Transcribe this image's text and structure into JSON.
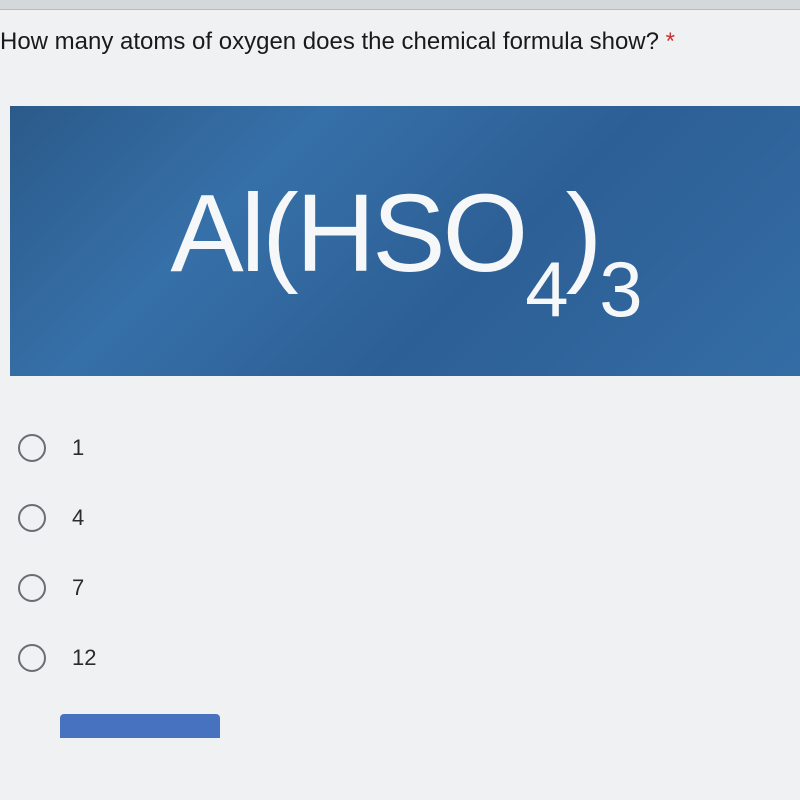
{
  "question": {
    "text": "How many atoms of oxygen does the chemical formula show? ",
    "required_marker": "*"
  },
  "formula": {
    "parts": [
      {
        "text": "Al(HSO",
        "sub": false
      },
      {
        "text": "4",
        "sub": true
      },
      {
        "text": ")",
        "sub": false
      },
      {
        "text": "3",
        "sub": true
      }
    ],
    "background_gradient": [
      "#2b5a8a",
      "#3670a8",
      "#2c5f95",
      "#346da5"
    ],
    "text_color": "#f5f7f9",
    "font_size_main": 110,
    "font_size_sub": 78
  },
  "options": [
    {
      "value": "1",
      "selected": false
    },
    {
      "value": "4",
      "selected": false
    },
    {
      "value": "7",
      "selected": false
    },
    {
      "value": "12",
      "selected": false
    }
  ],
  "colors": {
    "page_background": "#f0f1f2",
    "question_text": "#1a1a1a",
    "asterisk": "#c93030",
    "radio_border": "#6a6e72",
    "option_text": "#2a2c2e",
    "submit_button": "#4772c0"
  }
}
